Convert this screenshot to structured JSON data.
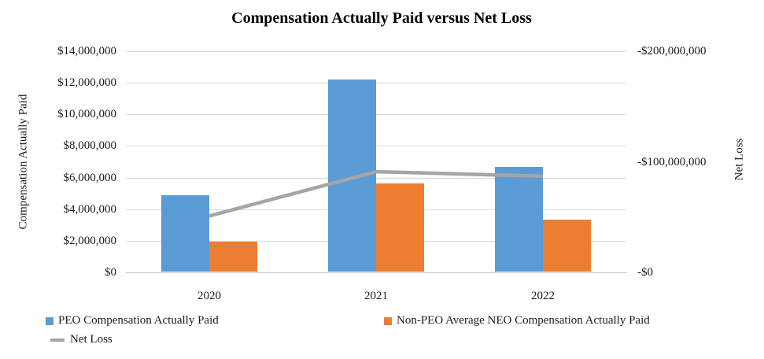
{
  "title": "Compensation Actually Paid versus Net Loss",
  "chart_data": {
    "type": "bar",
    "subtype": "grouped-bar-with-line-combo",
    "categories": [
      "2020",
      "2021",
      "2022"
    ],
    "series": [
      {
        "name": "PEO Compensation Actually Paid",
        "type": "bar",
        "axis": "left",
        "color": "#5B9BD5",
        "values": [
          4850000,
          12150000,
          6650000
        ]
      },
      {
        "name": "Non-PEO Average NEO Compensation Actually Paid",
        "type": "bar",
        "axis": "left",
        "color": "#ED7D31",
        "values": [
          1900000,
          5600000,
          3300000
        ]
      },
      {
        "name": "Net Loss",
        "type": "line",
        "axis": "right",
        "color": "#A5A5A5",
        "values": [
          -51000000,
          -91000000,
          -87000000
        ]
      }
    ],
    "left_axis": {
      "title": "Compensation Actually Paid",
      "min": 0,
      "max": 14000000,
      "step": 2000000,
      "tick_labels": [
        "$14,000,000",
        "$12,000,000",
        "$10,000,000",
        "$8,000,000",
        "$6,000,000",
        "$4,000,000",
        "$2,000,000",
        "$0"
      ]
    },
    "right_axis": {
      "title": "Net Loss",
      "min": 0,
      "max": -200000000,
      "tick_labels": [
        "-$200,000,000",
        "-$100,000,000",
        "-$0"
      ]
    },
    "grid": true,
    "legend_position": "bottom",
    "colors": {
      "gridline": "#d9d9d9",
      "axis_line": "#bfbfbf",
      "text": "#1a1a1a"
    }
  }
}
